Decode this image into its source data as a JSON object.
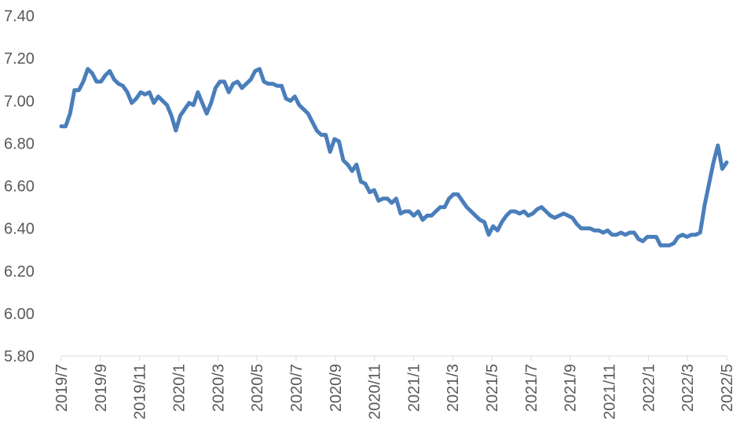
{
  "chart_data": {
    "type": "line",
    "title": "",
    "xlabel": "",
    "ylabel": "",
    "ylim": [
      5.8,
      7.4
    ],
    "grid": false,
    "legend": "none",
    "y_ticks": [
      "5.80",
      "6.00",
      "6.20",
      "6.40",
      "6.60",
      "6.80",
      "7.00",
      "7.20",
      "7.40"
    ],
    "x_tick_labels": [
      "2019/7",
      "2019/9",
      "2019/11",
      "2020/1",
      "2020/3",
      "2020/5",
      "2020/7",
      "2020/9",
      "2020/11",
      "2021/1",
      "2021/3",
      "2021/5",
      "2021/7",
      "2021/9",
      "2021/11",
      "2022/1",
      "2022/3",
      "2022/5"
    ],
    "series": [
      {
        "color": "#4a7ebb",
        "values": [
          6.88,
          6.88,
          6.94,
          7.05,
          7.05,
          7.09,
          7.15,
          7.13,
          7.09,
          7.09,
          7.12,
          7.14,
          7.1,
          7.08,
          7.07,
          7.04,
          6.99,
          7.01,
          7.04,
          7.03,
          7.04,
          6.99,
          7.02,
          7.0,
          6.98,
          6.93,
          6.86,
          6.93,
          6.96,
          6.99,
          6.98,
          7.04,
          6.99,
          6.94,
          6.99,
          7.06,
          7.09,
          7.09,
          7.04,
          7.08,
          7.09,
          7.06,
          7.08,
          7.1,
          7.14,
          7.15,
          7.09,
          7.08,
          7.08,
          7.07,
          7.07,
          7.01,
          7.0,
          7.02,
          6.98,
          6.96,
          6.94,
          6.9,
          6.86,
          6.84,
          6.84,
          6.76,
          6.82,
          6.81,
          6.72,
          6.7,
          6.67,
          6.7,
          6.62,
          6.61,
          6.57,
          6.58,
          6.53,
          6.54,
          6.54,
          6.52,
          6.54,
          6.47,
          6.48,
          6.48,
          6.46,
          6.48,
          6.44,
          6.46,
          6.46,
          6.48,
          6.5,
          6.5,
          6.54,
          6.56,
          6.56,
          6.53,
          6.5,
          6.48,
          6.46,
          6.44,
          6.43,
          6.37,
          6.41,
          6.39,
          6.43,
          6.46,
          6.48,
          6.48,
          6.47,
          6.48,
          6.46,
          6.47,
          6.49,
          6.5,
          6.48,
          6.46,
          6.45,
          6.46,
          6.47,
          6.46,
          6.45,
          6.42,
          6.4,
          6.4,
          6.4,
          6.39,
          6.39,
          6.38,
          6.39,
          6.37,
          6.37,
          6.38,
          6.37,
          6.38,
          6.38,
          6.35,
          6.34,
          6.36,
          6.36,
          6.36,
          6.32,
          6.32,
          6.32,
          6.33,
          6.36,
          6.37,
          6.36,
          6.37,
          6.37,
          6.38,
          6.51,
          6.61,
          6.71,
          6.79,
          6.68,
          6.71
        ]
      }
    ]
  }
}
